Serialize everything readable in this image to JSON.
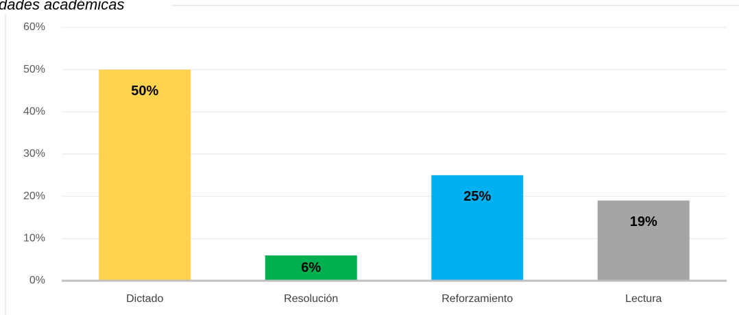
{
  "chart_data": {
    "type": "bar",
    "title": "dades académicas",
    "categories": [
      "Dictado",
      "Resolución",
      "Reforzamiento",
      "Lectura"
    ],
    "values": [
      50,
      6,
      25,
      19
    ],
    "value_labels": [
      "50%",
      "6%",
      "25%",
      "19%"
    ],
    "colors": [
      "#fdd24e",
      "#00b050",
      "#00b0f0",
      "#a5a5a5"
    ],
    "ylim": [
      0,
      60
    ],
    "yticks": [
      {
        "value": 0,
        "label": "0%"
      },
      {
        "value": 10,
        "label": "10%"
      },
      {
        "value": 20,
        "label": "20%"
      },
      {
        "value": 30,
        "label": "30%"
      },
      {
        "value": 40,
        "label": "40%"
      },
      {
        "value": 50,
        "label": "50%"
      },
      {
        "value": 60,
        "label": "60%"
      }
    ],
    "grid": true
  }
}
